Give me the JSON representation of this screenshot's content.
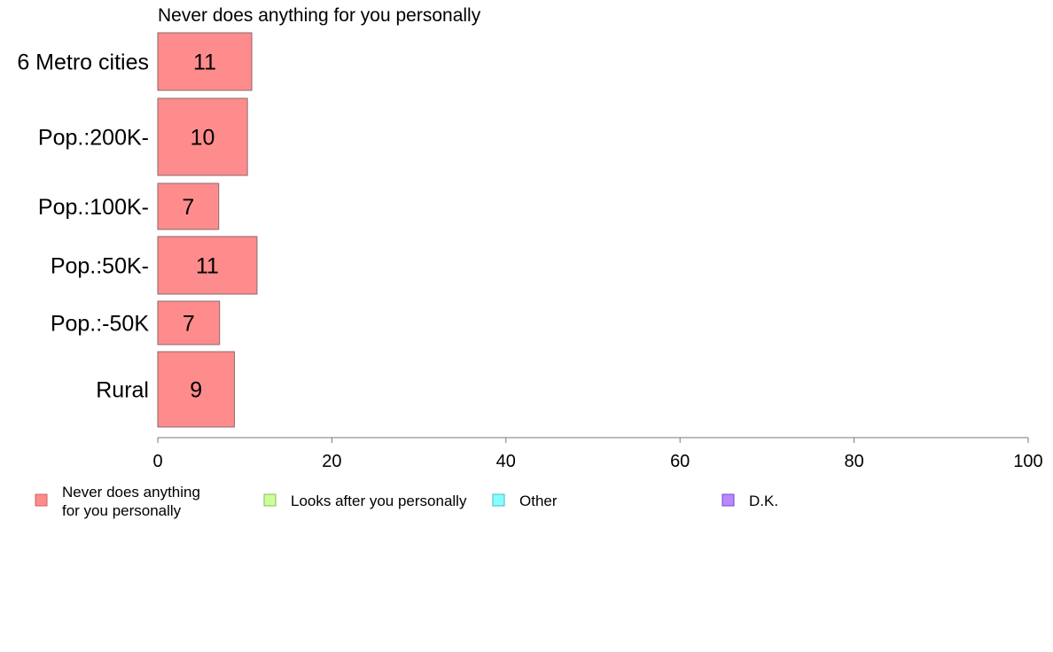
{
  "chart_data": {
    "type": "bar",
    "orientation": "horizontal",
    "title": "Never does anything for you personally",
    "categories": [
      "6 Metro cities",
      "Pop.:200K-",
      "Pop.:100K-",
      "Pop.:50K-",
      "Pop.:-50K",
      "Rural"
    ],
    "series": [
      {
        "name": "Never does anything for you personally",
        "color": "#ff8c8c",
        "values": [
          10.8,
          10.3,
          7.0,
          11.4,
          7.1,
          8.8
        ],
        "labels": [
          "11",
          "10",
          "7",
          "11",
          "7",
          "9"
        ]
      }
    ],
    "xlim": [
      0,
      100
    ],
    "xticks": [
      "0",
      "20",
      "40",
      "60",
      "80",
      "100"
    ],
    "grid": false,
    "legend": {
      "position": "bottom",
      "items": [
        {
          "label_lines": [
            "Never does anything",
            "for you personally"
          ],
          "color": "#ff8c8c",
          "stroke": "#d06060"
        },
        {
          "label_lines": [
            "Looks after you personally"
          ],
          "color": "#ccff99",
          "stroke": "#88bb55"
        },
        {
          "label_lines": [
            "Other"
          ],
          "color": "#88ffff",
          "stroke": "#44bbbb"
        },
        {
          "label_lines": [
            "D.K."
          ],
          "color": "#bb88ff",
          "stroke": "#7744cc"
        }
      ]
    }
  }
}
